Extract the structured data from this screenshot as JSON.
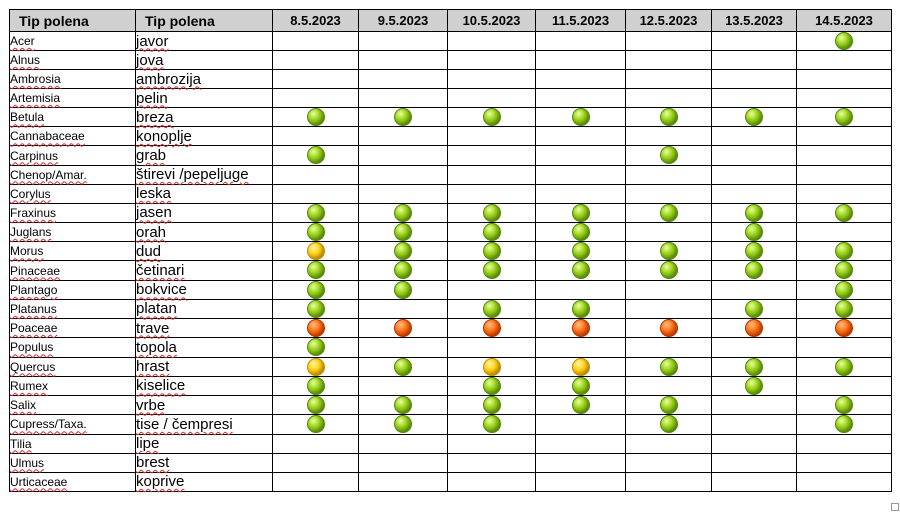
{
  "header": {
    "col1": "Tip polena",
    "col2": "Tip polena",
    "dates": [
      "8.5.2023",
      "9.5.2023",
      "10.5.2023",
      "11.5.2023",
      "12.5.2023",
      "13.5.2023",
      "14.5.2023"
    ]
  },
  "level_colors": {
    "green": "#8cc81a",
    "yellow": "#ffd21a",
    "red": "#ff6a10"
  },
  "rows": [
    {
      "latin": "Acer",
      "local": "javor",
      "levels": [
        "",
        "",
        "",
        "",
        "",
        "",
        "green"
      ]
    },
    {
      "latin": "Alnus",
      "local": "jova",
      "levels": [
        "",
        "",
        "",
        "",
        "",
        "",
        ""
      ]
    },
    {
      "latin": "Ambrosia",
      "local": "ambrozija",
      "levels": [
        "",
        "",
        "",
        "",
        "",
        "",
        ""
      ]
    },
    {
      "latin": "Artemisia",
      "local": "pelin",
      "levels": [
        "",
        "",
        "",
        "",
        "",
        "",
        ""
      ]
    },
    {
      "latin": "Betula",
      "local": "breza",
      "levels": [
        "green",
        "green",
        "green",
        "green",
        "green",
        "green",
        "green"
      ]
    },
    {
      "latin": "Cannabaceae",
      "local": "konoplje",
      "levels": [
        "",
        "",
        "",
        "",
        "",
        "",
        ""
      ]
    },
    {
      "latin": "Carpinus",
      "local": "grab",
      "levels": [
        "green",
        "",
        "",
        "",
        "green",
        "",
        ""
      ]
    },
    {
      "latin": "Chenop/Amar.",
      "local": "štirevi /pepeljuge",
      "levels": [
        "",
        "",
        "",
        "",
        "",
        "",
        ""
      ]
    },
    {
      "latin": "Corylus",
      "local": "leska",
      "levels": [
        "",
        "",
        "",
        "",
        "",
        "",
        ""
      ]
    },
    {
      "latin": "Fraxinus",
      "local": "jasen",
      "levels": [
        "green",
        "green",
        "green",
        "green",
        "green",
        "green",
        "green"
      ]
    },
    {
      "latin": "Juglans",
      "local": "orah",
      "levels": [
        "green",
        "green",
        "green",
        "green",
        "",
        "green",
        ""
      ]
    },
    {
      "latin": "Morus",
      "local": "dud",
      "levels": [
        "yellow",
        "green",
        "green",
        "green",
        "green",
        "green",
        "green"
      ]
    },
    {
      "latin": "Pinaceae",
      "local": "četinari",
      "levels": [
        "green",
        "green",
        "green",
        "green",
        "green",
        "green",
        "green"
      ]
    },
    {
      "latin": "Plantago",
      "local": "bokvice",
      "levels": [
        "green",
        "green",
        "",
        "",
        "",
        "",
        "green"
      ]
    },
    {
      "latin": "Platanus",
      "local": "platan",
      "levels": [
        "green",
        "",
        "green",
        "green",
        "",
        "green",
        "green"
      ]
    },
    {
      "latin": "Poaceae",
      "local": "trave",
      "levels": [
        "red",
        "red",
        "red",
        "red",
        "red",
        "red",
        "red"
      ]
    },
    {
      "latin": "Populus",
      "local": "topola",
      "levels": [
        "green",
        "",
        "",
        "",
        "",
        "",
        ""
      ]
    },
    {
      "latin": "Quercus",
      "local": "hrast",
      "levels": [
        "yellow",
        "green",
        "yellow",
        "yellow",
        "green",
        "green",
        "green"
      ]
    },
    {
      "latin": "Rumex",
      "local": "kiselice",
      "levels": [
        "green",
        "",
        "green",
        "green",
        "",
        "green",
        ""
      ]
    },
    {
      "latin": "Salix",
      "local": "vrbe",
      "levels": [
        "green",
        "green",
        "green",
        "green",
        "green",
        "",
        "green"
      ]
    },
    {
      "latin": "Cupress/Taxa.",
      "local": "tise / čempresi",
      "levels": [
        "green",
        "green",
        "green",
        "",
        "green",
        "",
        "green"
      ]
    },
    {
      "latin": "Tilia",
      "local": "lipe",
      "levels": [
        "",
        "",
        "",
        "",
        "",
        "",
        ""
      ]
    },
    {
      "latin": "Ulmus",
      "local": "brest",
      "levels": [
        "",
        "",
        "",
        "",
        "",
        "",
        ""
      ]
    },
    {
      "latin": "Urticaceae",
      "local": "koprive",
      "levels": [
        "",
        "",
        "",
        "",
        "",
        "",
        ""
      ]
    }
  ]
}
